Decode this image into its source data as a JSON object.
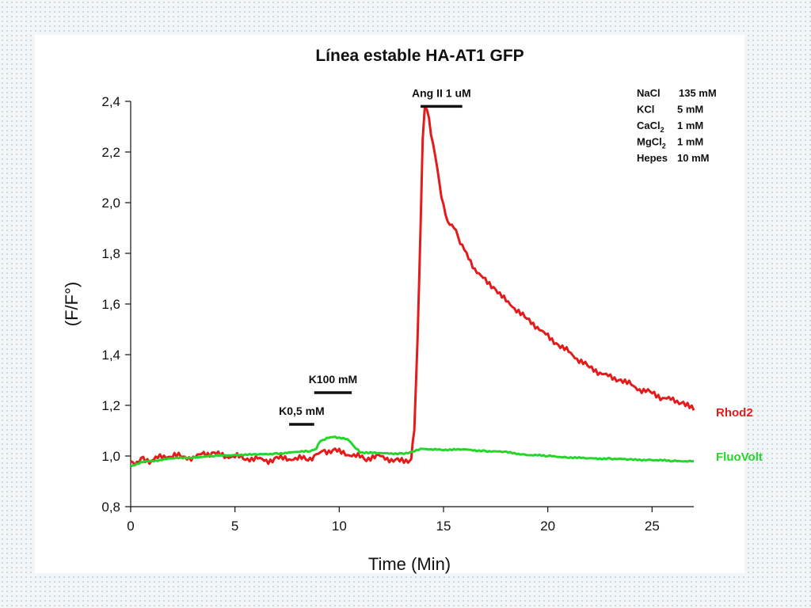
{
  "colors": {
    "rhod2": "#e31b1b",
    "fluovolt": "#25d62a",
    "axis": "#111111"
  },
  "chart_data": {
    "type": "line",
    "title": "Línea estable HA-AT1 GFP",
    "xlabel": "Time (Min)",
    "ylabel": "(F/F°)",
    "xlim": [
      0,
      27
    ],
    "ylim": [
      0.8,
      2.4
    ],
    "xticks": [
      {
        "value": 0,
        "label": "0"
      },
      {
        "value": 5,
        "label": "5"
      },
      {
        "value": 10,
        "label": "10"
      },
      {
        "value": 15,
        "label": "15"
      },
      {
        "value": 20,
        "label": "20"
      },
      {
        "value": 25,
        "label": "25"
      }
    ],
    "yticks": [
      {
        "value": 0.8,
        "label": "0,8"
      },
      {
        "value": 1.0,
        "label": "1,0"
      },
      {
        "value": 1.2,
        "label": "1,2"
      },
      {
        "value": 1.4,
        "label": "1,4"
      },
      {
        "value": 1.6,
        "label": "1,6"
      },
      {
        "value": 1.8,
        "label": "1,8"
      },
      {
        "value": 2.0,
        "label": "2,0"
      },
      {
        "value": 2.2,
        "label": "2,2"
      },
      {
        "value": 2.4,
        "label": "2,4"
      }
    ],
    "grid": false,
    "legend_position": "right",
    "series": [
      {
        "name": "Rhod2",
        "color": "#e31b1b",
        "points": [
          [
            0,
            0.98
          ],
          [
            0.3,
            0.97
          ],
          [
            0.6,
            0.99
          ],
          [
            1,
            0.98
          ],
          [
            1.5,
            1.0
          ],
          [
            2,
            1.0
          ],
          [
            2.5,
            1.0
          ],
          [
            3,
            0.99
          ],
          [
            3.5,
            1.01
          ],
          [
            4,
            1.01
          ],
          [
            4.5,
            1.0
          ],
          [
            5,
            1.0
          ],
          [
            5.5,
            0.99
          ],
          [
            6,
            0.99
          ],
          [
            6.5,
            0.98
          ],
          [
            7,
            0.99
          ],
          [
            7.5,
            0.99
          ],
          [
            8,
            0.99
          ],
          [
            8.5,
            0.99
          ],
          [
            8.9,
            1.0
          ],
          [
            9.3,
            1.02
          ],
          [
            9.8,
            1.02
          ],
          [
            10.3,
            1.01
          ],
          [
            10.8,
            1.0
          ],
          [
            11.3,
            0.99
          ],
          [
            11.8,
            1.0
          ],
          [
            12.3,
            0.99
          ],
          [
            12.8,
            0.98
          ],
          [
            13.3,
            0.98
          ],
          [
            13.45,
            0.99
          ],
          [
            13.6,
            1.1
          ],
          [
            13.75,
            1.45
          ],
          [
            13.9,
            1.9
          ],
          [
            14.0,
            2.25
          ],
          [
            14.1,
            2.38
          ],
          [
            14.2,
            2.37
          ],
          [
            14.4,
            2.28
          ],
          [
            14.6,
            2.18
          ],
          [
            14.8,
            2.08
          ],
          [
            15.0,
            1.98
          ],
          [
            15.2,
            1.93
          ],
          [
            15.5,
            1.9
          ],
          [
            15.8,
            1.85
          ],
          [
            16.0,
            1.81
          ],
          [
            16.5,
            1.74
          ],
          [
            17.0,
            1.69
          ],
          [
            17.5,
            1.66
          ],
          [
            18.0,
            1.61
          ],
          [
            18.5,
            1.58
          ],
          [
            19.0,
            1.54
          ],
          [
            19.5,
            1.51
          ],
          [
            20.0,
            1.47
          ],
          [
            20.5,
            1.44
          ],
          [
            21.0,
            1.41
          ],
          [
            21.5,
            1.38
          ],
          [
            22.0,
            1.35
          ],
          [
            22.5,
            1.33
          ],
          [
            23.0,
            1.31
          ],
          [
            23.5,
            1.3
          ],
          [
            24.0,
            1.28
          ],
          [
            24.5,
            1.26
          ],
          [
            25.0,
            1.25
          ],
          [
            25.5,
            1.23
          ],
          [
            26.0,
            1.22
          ],
          [
            26.5,
            1.21
          ],
          [
            27.0,
            1.18
          ]
        ]
      },
      {
        "name": "FluoVolt",
        "color": "#25d62a",
        "points": [
          [
            0,
            0.96
          ],
          [
            0.5,
            0.975
          ],
          [
            1,
            0.98
          ],
          [
            2,
            0.99
          ],
          [
            3,
            0.995
          ],
          [
            4,
            1.0
          ],
          [
            5,
            1.005
          ],
          [
            6,
            1.005
          ],
          [
            7,
            1.01
          ],
          [
            8,
            1.015
          ],
          [
            8.6,
            1.02
          ],
          [
            8.9,
            1.03
          ],
          [
            9.1,
            1.06
          ],
          [
            9.4,
            1.07
          ],
          [
            9.8,
            1.075
          ],
          [
            10.2,
            1.07
          ],
          [
            10.5,
            1.06
          ],
          [
            10.8,
            1.03
          ],
          [
            11.0,
            1.015
          ],
          [
            12,
            1.01
          ],
          [
            13,
            1.01
          ],
          [
            13.5,
            1.015
          ],
          [
            14.0,
            1.03
          ],
          [
            14.5,
            1.025
          ],
          [
            15.0,
            1.025
          ],
          [
            16.0,
            1.025
          ],
          [
            17.0,
            1.02
          ],
          [
            18.0,
            1.015
          ],
          [
            19.0,
            1.005
          ],
          [
            20.0,
            1.0
          ],
          [
            21.0,
            0.995
          ],
          [
            22.0,
            0.99
          ],
          [
            23.0,
            0.99
          ],
          [
            24.0,
            0.985
          ],
          [
            25.0,
            0.985
          ],
          [
            26.0,
            0.98
          ],
          [
            27.0,
            0.98
          ]
        ]
      }
    ],
    "annotations": [
      {
        "label": "Ang II 1 uM",
        "bar_x": [
          13.9,
          15.9
        ],
        "bar_y": 2.38
      },
      {
        "label": "K100 mM",
        "bar_x": [
          8.8,
          10.6
        ],
        "bar_y": 1.25
      },
      {
        "label": "K0,5 mM",
        "bar_x": [
          7.6,
          8.8
        ],
        "bar_y": 1.125
      }
    ],
    "solution_box": [
      {
        "name": "NaCl",
        "sub": "",
        "value": "135 mM"
      },
      {
        "name": "KCl",
        "sub": "",
        "value": "5 mM"
      },
      {
        "name": "CaCl",
        "sub": "2",
        "value": "1 mM"
      },
      {
        "name": "MgCl",
        "sub": "2",
        "value": "1 mM"
      },
      {
        "name": "Hepes",
        "sub": "",
        "value": "10 mM"
      }
    ]
  }
}
